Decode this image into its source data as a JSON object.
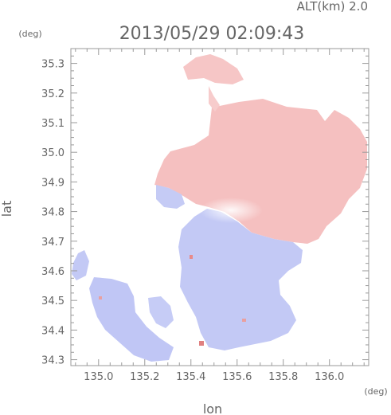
{
  "header": {
    "alt_label": "ALT(km) 2.0",
    "timestamp": "2013/05/29 02:09:43",
    "lat_unit": "(deg)",
    "lon_unit": "(deg)"
  },
  "chart_data": {
    "type": "heatmap",
    "title": "2013/05/29 02:09:43",
    "xlabel": "lon",
    "ylabel": "lat",
    "x_unit": "(deg)",
    "y_unit": "(deg)",
    "xlim": [
      134.88,
      136.17
    ],
    "ylim": [
      34.28,
      35.35
    ],
    "x_ticks": [
      135.0,
      135.2,
      135.4,
      135.6,
      135.8,
      136.0
    ],
    "x_tick_labels": [
      "135.0",
      "135.2",
      "135.4",
      "135.6",
      "135.8",
      "136.0"
    ],
    "y_ticks": [
      34.3,
      34.4,
      34.5,
      34.6,
      34.7,
      34.8,
      34.9,
      35.0,
      35.1,
      35.2,
      35.3
    ],
    "y_tick_labels": [
      "34.3",
      "34.4",
      "34.5",
      "34.6",
      "34.7",
      "34.8",
      "34.9",
      "35.0",
      "35.1",
      "35.2",
      "35.3"
    ],
    "radar_center": {
      "lon": 135.52,
      "lat": 34.81
    },
    "colors": {
      "positive": "#f4b9b9",
      "negative": "#b9c0f4",
      "neutral": "#ffffff"
    }
  }
}
